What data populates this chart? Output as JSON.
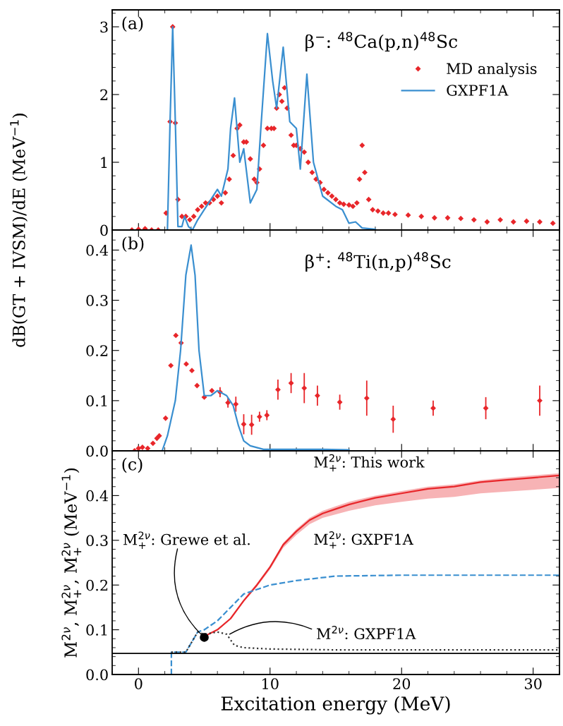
{
  "chart_data": [
    {
      "type": "line",
      "xlim": [
        -2,
        32
      ],
      "xticks": [
        0,
        10,
        20,
        30
      ],
      "ylim": [
        0,
        3.25
      ],
      "yticks": [
        0,
        1,
        2,
        3
      ],
      "tick_labels": "y",
      "legend": "top right",
      "ylabel": "dB(GT + IVSM)/dE (MeV$^{−1}$)",
      "annotations": [
        "(a)",
        "β$^{−}$: $^{48}$Ca(p,n)$^{48}$Sc"
      ],
      "series": [
        {
          "name": "MD analysis",
          "type": "scatter",
          "marker": "diamond",
          "color": "#e8262a",
          "x": [
            -0.5,
            0,
            0.5,
            1,
            1.5,
            2.1,
            2.4,
            2.6,
            2.8,
            3.0,
            3.3,
            3.6,
            3.9,
            4.2,
            4.5,
            4.8,
            5.1,
            5.4,
            5.7,
            6.0,
            6.3,
            6.6,
            6.9,
            7.2,
            7.5,
            7.7,
            8.0,
            8.2,
            8.5,
            8.8,
            9.0,
            9.2,
            9.5,
            9.8,
            10.1,
            10.3,
            10.5,
            10.7,
            10.9,
            11.1,
            11.3,
            11.6,
            11.8,
            12.0,
            12.3,
            12.6,
            12.9,
            13.2,
            13.5,
            13.8,
            14.1,
            14.4,
            14.7,
            15.0,
            15.3,
            15.6,
            16.0,
            16.3,
            16.6,
            16.8,
            17.0,
            17.2,
            17.5,
            17.8,
            18.2,
            18.6,
            19.0,
            19.5,
            20.5,
            21.5,
            22.5,
            23.5,
            24.5,
            25.5,
            26.5,
            27.5,
            28.5,
            29.5,
            30.5,
            31.5
          ],
          "values": [
            0,
            0.01,
            0.02,
            0,
            0,
            0.25,
            1.6,
            3.0,
            1.58,
            0.45,
            0.2,
            0.2,
            0.15,
            0.2,
            0.3,
            0.35,
            0.4,
            0.4,
            0.45,
            0.5,
            0.4,
            0.55,
            0.75,
            1.1,
            1.5,
            1.55,
            1.3,
            1.3,
            1.05,
            0.75,
            0.7,
            0.9,
            1.25,
            1.5,
            1.5,
            1.5,
            1.8,
            2.0,
            1.9,
            2.1,
            1.8,
            1.4,
            1.25,
            1.25,
            1.2,
            1.15,
            1.0,
            0.85,
            0.75,
            0.7,
            0.6,
            0.55,
            0.5,
            0.45,
            0.4,
            0.38,
            0.37,
            0.35,
            0.4,
            0.75,
            1.25,
            0.85,
            0.45,
            0.3,
            0.28,
            0.25,
            0.25,
            0.23,
            0.22,
            0.2,
            0.18,
            0.18,
            0.17,
            0.15,
            0.12,
            0.15,
            0.12,
            0.13,
            0.12,
            0.1
          ]
        },
        {
          "name": "GXPF1A",
          "color": "#3a8fd0",
          "line_style": "solid",
          "x": [
            -2,
            2.2,
            2.4,
            2.6,
            2.8,
            3.0,
            3.3,
            3.5,
            3.8,
            4.1,
            4.5,
            5.0,
            5.5,
            6.0,
            6.3,
            6.8,
            7.0,
            7.3,
            7.7,
            8.0,
            8.5,
            9.0,
            9.3,
            9.8,
            10.2,
            10.5,
            11.0,
            11.5,
            12.0,
            12.3,
            12.8,
            13.3,
            14.0,
            15.0,
            15.5,
            16.0,
            16.5,
            17.0,
            18.0
          ],
          "values": [
            0,
            0,
            1.6,
            3.0,
            1.6,
            0.05,
            0.05,
            0.2,
            0.05,
            0.0,
            0.15,
            0.3,
            0.45,
            0.6,
            0.5,
            0.9,
            1.5,
            1.95,
            1.0,
            1.2,
            0.4,
            0.6,
            1.5,
            2.9,
            2.2,
            1.8,
            2.7,
            1.6,
            1.5,
            0.9,
            2.3,
            1.0,
            0.5,
            0.35,
            0.3,
            0.1,
            0.12,
            0.03,
            0.01
          ]
        }
      ]
    },
    {
      "type": "line",
      "xlim": [
        -2,
        32
      ],
      "xticks": [
        0,
        10,
        20,
        30
      ],
      "ylim": [
        0,
        0.44
      ],
      "yticks": [
        {
          "value": 0,
          "label": "0.0"
        },
        0.1,
        0.2,
        0.3,
        0.4
      ],
      "tick_labels": "y",
      "annotations": [
        "(b)",
        "β$^{+}$: $^{48}$Ti(n,p)$^{48}$Sc"
      ],
      "series": [
        {
          "type": "scatter",
          "marker": "diamond",
          "color": "#e8262a",
          "x": [
            -0.3,
            0,
            0.3,
            0.7,
            1.1,
            1.4,
            1.58,
            2.06,
            2.46,
            2.84,
            3.24,
            3.63,
            4.06,
            4.45,
            5.0,
            5.58,
            6.2,
            6.8,
            7.4,
            8.0,
            8.6,
            9.2,
            9.76,
            10.6,
            11.6,
            12.6,
            13.6,
            15.3,
            17.35,
            19.36,
            22.4,
            26.4,
            30.5
          ],
          "values": [
            0,
            0.005,
            0.007,
            0.005,
            0.015,
            0.025,
            0.03,
            0.065,
            0.17,
            0.23,
            0.215,
            0.173,
            0.16,
            0.13,
            0.107,
            0.12,
            0.117,
            0.096,
            0.093,
            0.053,
            0.052,
            0.068,
            0.071,
            0.122,
            0.135,
            0.125,
            0.11,
            0.097,
            0.105,
            0.063,
            0.085,
            0.085,
            0.1
          ],
          "errors": [
            null,
            null,
            null,
            null,
            null,
            null,
            null,
            null,
            null,
            null,
            null,
            null,
            null,
            null,
            null,
            null,
            0.01,
            0.01,
            0.015,
            0.02,
            0.02,
            0.01,
            0.01,
            0.02,
            0.02,
            0.03,
            0.02,
            0.015,
            0.035,
            0.027,
            0.015,
            0.022,
            0.03
          ]
        },
        {
          "color": "#3a8fd0",
          "line_style": "solid",
          "x": [
            -2,
            1.8,
            2.2,
            2.8,
            3.2,
            3.6,
            4.0,
            4.3,
            4.6,
            5.0,
            5.5,
            6.0,
            6.7,
            7.2,
            7.6,
            8.0,
            8.5,
            9.5,
            12,
            14,
            16
          ],
          "values": [
            0,
            0,
            0.03,
            0.1,
            0.2,
            0.35,
            0.41,
            0.35,
            0.2,
            0.11,
            0.11,
            0.12,
            0.11,
            0.09,
            0.05,
            0.02,
            0.01,
            0.003,
            0.003,
            0.003,
            0.002
          ]
        }
      ]
    },
    {
      "type": "line",
      "xlim": [
        -2,
        32
      ],
      "xticks": [
        0,
        10,
        20,
        30
      ],
      "ylim": [
        0,
        0.5
      ],
      "yticks": [
        {
          "value": 0,
          "label": "0.0"
        },
        0.1,
        0.2,
        0.3,
        0.4
      ],
      "xlabel": "Excitation energy (MeV)",
      "ylabel": "M$^{2ν}$, M$^{2ν}$$_{+}$, M$^{2ν}$$_{+}$ (MeV$^{−1}$)",
      "annotations": [
        "(c)",
        "M$^{2ν}$$_{+}$: This work",
        "M$^{2ν}$$_{+}$: GXPF1A",
        {
          "text": "M$^{2ν}$$_{+}$: Grewe et al.",
          "x": 5.0,
          "y": 0.083
        },
        {
          "text": "M$^{2ν}$: GXPF1A",
          "x": 6.8,
          "y": 0.088
        }
      ],
      "ref_lines": [
        {
          "axis": "y",
          "value": 0.047,
          "color": "#000000",
          "line_style": "solid"
        }
      ],
      "series": [
        {
          "color": "#e8262a",
          "line_style": "solid",
          "x": [
            5,
            6,
            7,
            8,
            9,
            10,
            11,
            12,
            13,
            14,
            15,
            16,
            18,
            20,
            22,
            24,
            26,
            28,
            30,
            32
          ],
          "values": [
            0.085,
            0.1,
            0.125,
            0.165,
            0.2,
            0.24,
            0.29,
            0.32,
            0.345,
            0.36,
            0.37,
            0.38,
            0.395,
            0.405,
            0.415,
            0.42,
            0.43,
            0.435,
            0.44,
            0.445
          ],
          "lower": [
            0.085,
            0.099,
            0.123,
            0.162,
            0.196,
            0.235,
            0.283,
            0.312,
            0.336,
            0.35,
            0.358,
            0.366,
            0.378,
            0.386,
            0.393,
            0.397,
            0.405,
            0.409,
            0.413,
            0.417
          ],
          "upper": [
            0.085,
            0.101,
            0.127,
            0.168,
            0.204,
            0.244,
            0.294,
            0.325,
            0.35,
            0.366,
            0.376,
            0.386,
            0.4,
            0.41,
            0.42,
            0.425,
            0.434,
            0.44,
            0.445,
            0.45
          ]
        },
        {
          "color": "#3a8fd0",
          "line_style": "dashed",
          "x": [
            2.5,
            2.5,
            3.6,
            4.0,
            4.5,
            5,
            6,
            7,
            8,
            9,
            10,
            12,
            15,
            20,
            32
          ],
          "values": [
            0,
            0.05,
            0.05,
            0.07,
            0.095,
            0.1,
            0.12,
            0.15,
            0.18,
            0.19,
            0.2,
            0.21,
            0.22,
            0.222,
            0.222
          ]
        },
        {
          "color": "#333333",
          "line_style": "dotted",
          "x": [
            2.5,
            3.6,
            4.0,
            4.5,
            5,
            6,
            6.7,
            7.3,
            8,
            10,
            15,
            32
          ],
          "values": [
            0.05,
            0.05,
            0.07,
            0.095,
            0.09,
            0.095,
            0.09,
            0.065,
            0.06,
            0.057,
            0.055,
            0.055
          ]
        },
        {
          "type": "scatter",
          "marker": "circle",
          "color": "#000000",
          "x": [
            5.0
          ],
          "values": [
            0.083
          ],
          "errors": [
            0.008
          ]
        }
      ]
    }
  ]
}
